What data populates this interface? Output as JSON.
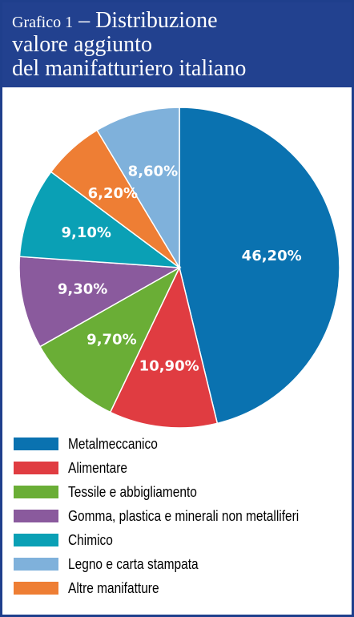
{
  "header": {
    "title_prefix": "Grafico 1",
    "title_dash": "–",
    "title_line1": "Distribuzione",
    "title_line2": "valore aggiunto",
    "title_line3": "del manifatturiero italiano"
  },
  "colors": {
    "frame": "#1f3f8c",
    "header_bg": "#22418f"
  },
  "chart_data": {
    "type": "pie",
    "title": "Grafico 1 – Distribuzione valore aggiunto del manifatturiero italiano",
    "legend_position": "bottom",
    "slices": [
      {
        "label": "Metalmeccanico",
        "value": 46.2,
        "display": "46,20%",
        "color": "#0a72b0"
      },
      {
        "label": "Alimentare",
        "value": 10.9,
        "display": "10,90%",
        "color": "#e03c41"
      },
      {
        "label": "Tessile e abbigliamento",
        "value": 9.7,
        "display": "9,70%",
        "color": "#6aae36"
      },
      {
        "label": "Gomma, plastica e minerali non metalliferi",
        "value": 9.3,
        "display": "9,30%",
        "color": "#8a5a9d"
      },
      {
        "label": "Chimico",
        "value": 9.1,
        "display": "9,10%",
        "color": "#0aa0b5"
      },
      {
        "label": "Altre manifatture",
        "value": 6.2,
        "display": "6,20%",
        "color": "#ee7e34"
      },
      {
        "label": "Legno e carta stampata",
        "value": 8.6,
        "display": "8,60%",
        "color": "#7fb1db"
      }
    ],
    "legend": [
      {
        "label": "Metalmeccanico",
        "color": "#0a72b0"
      },
      {
        "label": "Alimentare",
        "color": "#e03c41"
      },
      {
        "label": "Tessile e abbigliamento",
        "color": "#6aae36"
      },
      {
        "label": "Gomma, plastica e minerali non metalliferi",
        "color": "#8a5a9d"
      },
      {
        "label": "Chimico",
        "color": "#0aa0b5"
      },
      {
        "label": "Legno e carta stampata",
        "color": "#7fb1db"
      },
      {
        "label": "Altre manifatture",
        "color": "#ee7e34"
      }
    ]
  }
}
